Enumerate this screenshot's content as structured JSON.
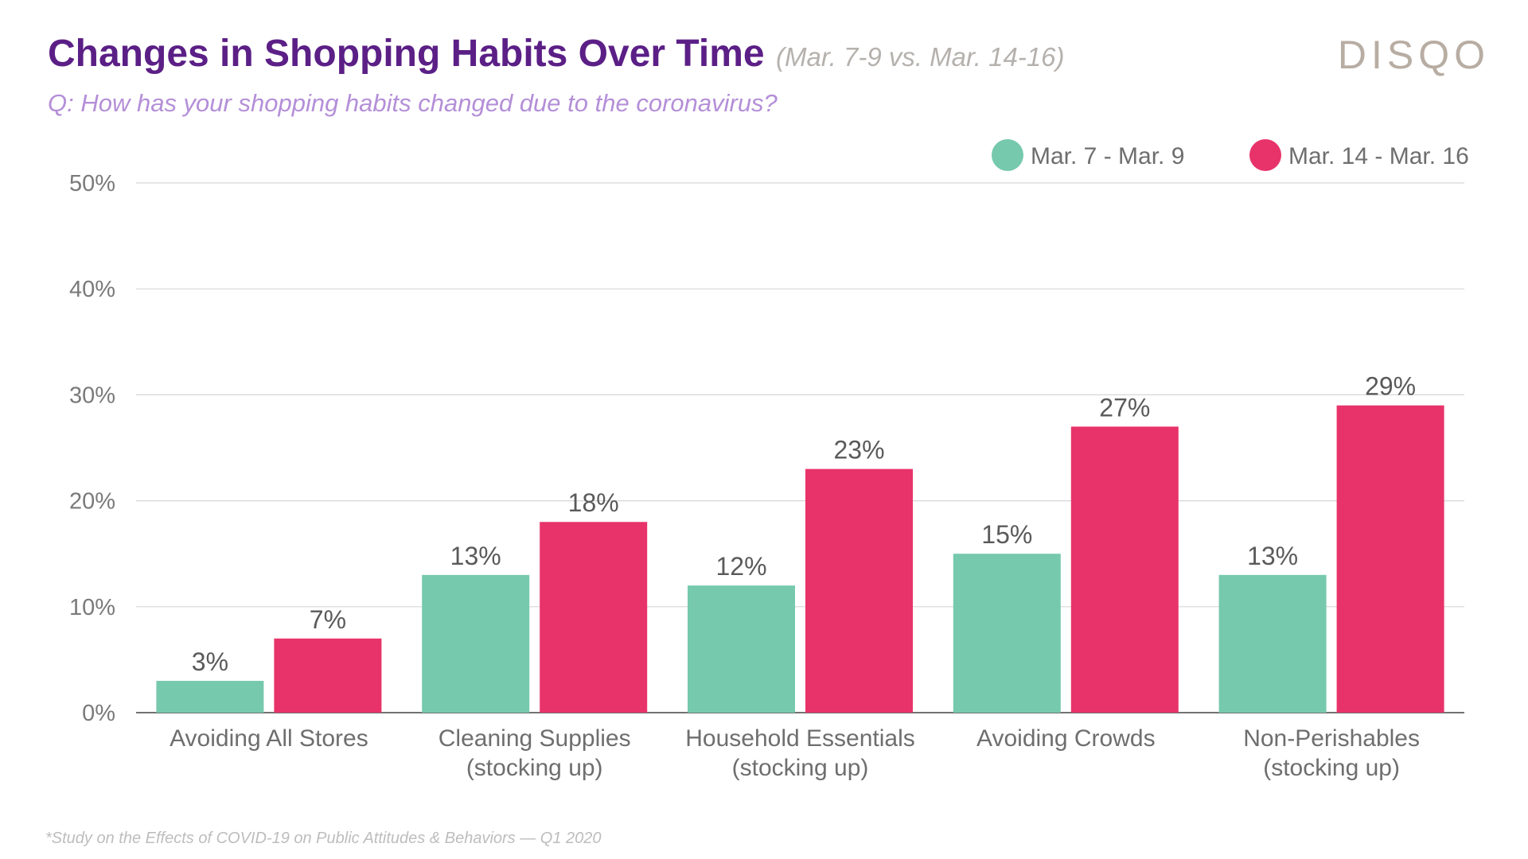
{
  "header": {
    "title": "Changes in Shopping Habits Over Time",
    "subtitle": "(Mar. 7-9 vs. Mar. 14-16)",
    "question": "Q: How has your shopping habits changed due to the coronavirus?",
    "logo": "DISQO"
  },
  "footnote": "*Study on the Effects of COVID-19 on Public Attitudes & Behaviors — Q1 2020",
  "colors": {
    "title": "#5b1f86",
    "question": "#b48fd8",
    "series1": "#76c9ad",
    "series2": "#e8336a"
  },
  "chart_data": {
    "type": "bar",
    "title": "Changes in Shopping Habits Over Time",
    "xlabel": "",
    "ylabel": "",
    "ylim": [
      0,
      50
    ],
    "yticks": [
      "0%",
      "10%",
      "20%",
      "30%",
      "40%",
      "50%"
    ],
    "grid": true,
    "legend_position": "top-right",
    "categories": [
      [
        "Avoiding All Stores"
      ],
      [
        "Cleaning Supplies",
        "(stocking up)"
      ],
      [
        "Household Essentials",
        "(stocking up)"
      ],
      [
        "Avoiding Crowds"
      ],
      [
        "Non-Perishables",
        "(stocking up)"
      ]
    ],
    "series": [
      {
        "name": "Mar. 7 - Mar. 9",
        "color": "#76c9ad",
        "values": [
          3,
          13,
          12,
          15,
          13
        ],
        "labels": [
          "3%",
          "13%",
          "12%",
          "15%",
          "13%"
        ]
      },
      {
        "name": "Mar. 14 - Mar. 16",
        "color": "#e8336a",
        "values": [
          7,
          18,
          23,
          27,
          29
        ],
        "labels": [
          "7%",
          "18%",
          "23%",
          "27%",
          "29%"
        ]
      }
    ]
  }
}
